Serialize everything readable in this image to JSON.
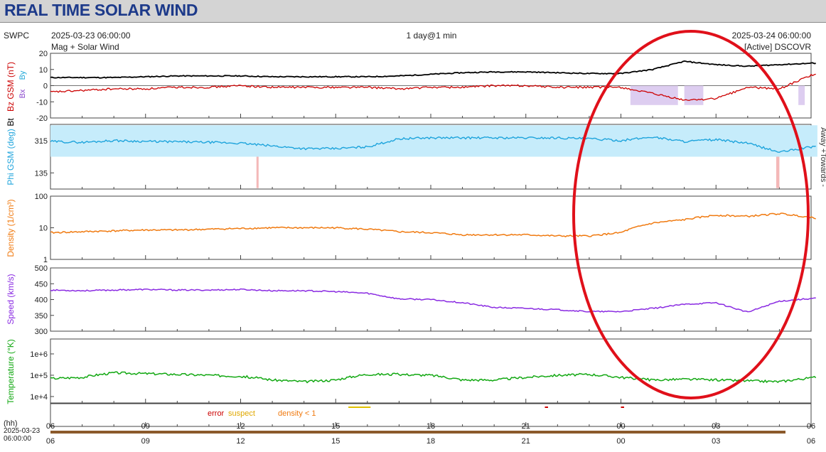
{
  "banner": {
    "title": "REAL TIME SOLAR WIND"
  },
  "header": {
    "agency": "SWPC",
    "start": "2025-03-23 06:00:00",
    "subtitle": "Mag + Solar Wind",
    "span": "1 day@1 min",
    "end": "2025-03-24 06:00:00",
    "source": "[Active] DSCOVR"
  },
  "colors": {
    "bz": "#cc0000",
    "bt": "#000000",
    "by": "#20a8d8",
    "bx": "#8844cc",
    "phi": "#1ea4dc",
    "phi_fill": "#c6ecfb",
    "phi_neg": "#f4b8b8",
    "density": "#f07a10",
    "speed": "#8a2be2",
    "temperature": "#12a812",
    "bz_neg_fill": "#d9c8ee",
    "annotation": "#e0101a"
  },
  "chart_data": [
    {
      "id": "mag",
      "type": "line",
      "ylabel_parts": [
        "Bz GSM (nT)",
        "Bt",
        "Bx",
        "By"
      ],
      "ylim": [
        -20,
        20
      ],
      "yticks": [
        "20",
        "10",
        "0",
        "-10",
        "-20"
      ],
      "x_hours": [
        6,
        7,
        8,
        9,
        10,
        11,
        12,
        13,
        14,
        15,
        16,
        17,
        18,
        19,
        20,
        21,
        22,
        23,
        24,
        25,
        26,
        27,
        28,
        29,
        30.2
      ],
      "series": [
        {
          "key": "bt",
          "values": [
            5,
            5,
            5,
            5.5,
            6,
            6,
            6,
            5.5,
            5.5,
            5.5,
            5.5,
            6,
            7,
            8,
            8.5,
            8.5,
            8,
            7.5,
            7.5,
            10,
            15,
            13,
            12,
            13,
            14
          ]
        },
        {
          "key": "bz",
          "values": [
            -4,
            -3,
            -2,
            -2,
            -1,
            -1,
            0,
            -1,
            -1,
            -1,
            -1,
            -2,
            -1,
            -1,
            0,
            0,
            -1,
            -1,
            -1,
            -5,
            -9,
            -8,
            -1,
            -2,
            8
          ]
        }
      ]
    },
    {
      "id": "phi",
      "type": "line",
      "ylabel": "Phi GSM (deg)",
      "right_label": "Away +Towards -",
      "ylim": [
        45,
        405
      ],
      "yticks": [
        "315",
        "135"
      ],
      "x_hours": [
        6,
        7,
        8,
        9,
        10,
        11,
        12,
        13,
        14,
        15,
        16,
        17,
        18,
        19,
        20,
        21,
        22,
        23,
        24,
        25,
        26,
        27,
        28,
        29,
        30.2
      ],
      "values": [
        310,
        305,
        315,
        310,
        308,
        305,
        300,
        285,
        270,
        270,
        280,
        325,
        330,
        330,
        330,
        330,
        330,
        325,
        315,
        335,
        310,
        320,
        300,
        250,
        285
      ]
    },
    {
      "id": "density",
      "type": "line",
      "ylabel": "Density (1/cm³)",
      "yscale": "log",
      "ylim": [
        1,
        100
      ],
      "yticks": [
        "100",
        "10",
        "1"
      ],
      "x_hours": [
        6,
        7,
        8,
        9,
        10,
        11,
        12,
        13,
        14,
        15,
        16,
        17,
        18,
        19,
        20,
        21,
        22,
        23,
        24,
        25,
        26,
        27,
        28,
        29,
        30.2
      ],
      "values": [
        7,
        7.5,
        8,
        8.5,
        8.5,
        9,
        9.5,
        10,
        10,
        10,
        9,
        7.5,
        7,
        6,
        6,
        6,
        5.5,
        5.5,
        7,
        14,
        18,
        25,
        23,
        28,
        20
      ]
    },
    {
      "id": "speed",
      "type": "line",
      "ylabel": "Speed (km/s)",
      "ylim": [
        300,
        500
      ],
      "yticks": [
        "500",
        "450",
        "400",
        "350",
        "300"
      ],
      "x_hours": [
        6,
        7,
        8,
        9,
        10,
        11,
        12,
        13,
        14,
        15,
        16,
        17,
        18,
        19,
        20,
        21,
        22,
        23,
        24,
        25,
        26,
        27,
        28,
        29,
        30.2
      ],
      "values": [
        430,
        428,
        430,
        432,
        430,
        430,
        432,
        428,
        428,
        425,
        420,
        402,
        400,
        390,
        375,
        372,
        368,
        362,
        362,
        372,
        385,
        390,
        360,
        395,
        405
      ]
    },
    {
      "id": "temperature",
      "type": "line",
      "ylabel": "Temperature (°K)",
      "yscale": "log",
      "ylim": [
        5000,
        5000000
      ],
      "yticks": [
        "1e+6",
        "1e+5",
        "1e+4"
      ],
      "x_hours": [
        6,
        7,
        8,
        9,
        10,
        11,
        12,
        13,
        14,
        15,
        16,
        17,
        18,
        19,
        20,
        21,
        22,
        23,
        24,
        25,
        26,
        27,
        28,
        29,
        30.2
      ],
      "values": [
        70000,
        80000,
        130000,
        120000,
        110000,
        100000,
        90000,
        60000,
        50000,
        60000,
        110000,
        110000,
        100000,
        60000,
        60000,
        80000,
        100000,
        110000,
        80000,
        60000,
        65000,
        60000,
        55000,
        50000,
        80000
      ]
    }
  ],
  "legend": {
    "error": "error",
    "suspect": "suspect",
    "density_note": "density < 1"
  },
  "xaxis": {
    "hour_unit": "(hh)",
    "date_line": "2025-03-23",
    "time_line": "06:00:00",
    "tick_labels": [
      "06",
      "09",
      "12",
      "15",
      "18",
      "21",
      "00",
      "03",
      "06"
    ]
  }
}
